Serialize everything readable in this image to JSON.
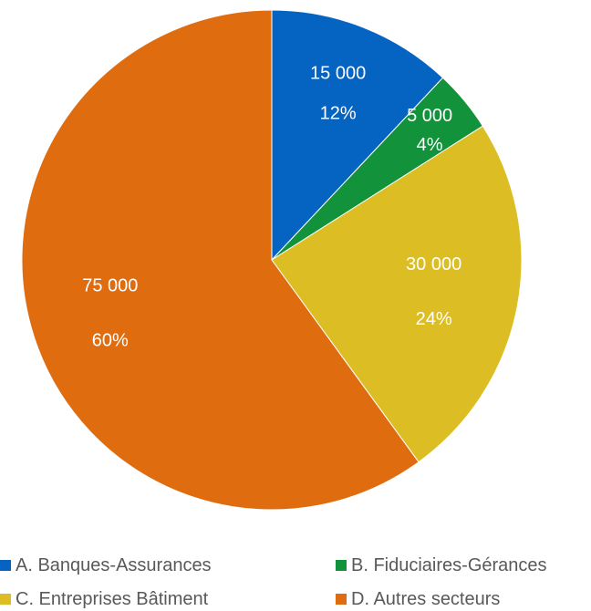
{
  "chart_data": {
    "type": "pie",
    "title": "",
    "slices": [
      {
        "name": "A. Banques-Assurances",
        "value": 15000,
        "value_label": "15 000",
        "percent_label": "12%",
        "color": "#0563C1"
      },
      {
        "name": "B. Fiduciaires-Gérances",
        "value": 5000,
        "value_label": "5 000",
        "percent_label": "4%",
        "color": "#12923B"
      },
      {
        "name": "C. Entreprises Bâtiment",
        "value": 30000,
        "value_label": "30 000",
        "percent_label": "24%",
        "color": "#DCBD24"
      },
      {
        "name": "D. Autres secteurs",
        "value": 75000,
        "value_label": "75 000",
        "percent_label": "60%",
        "color": "#E06C10"
      }
    ],
    "legend_position": "bottom"
  }
}
